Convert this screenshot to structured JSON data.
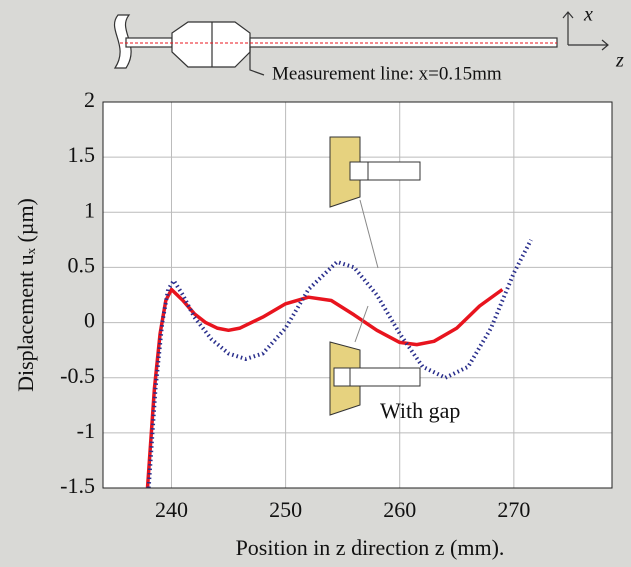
{
  "chart_data": {
    "type": "line",
    "annotation_top": "Measurement line: x=0.15mm",
    "annotation": "With gap",
    "xlabel": "Position in z direction  z (mm).",
    "ylabel": "Displacement uₓ (µm)",
    "axis_x_label": "x",
    "axis_z_label": "z",
    "xlim": [
      234,
      278.6
    ],
    "ylim": [
      -1.5,
      2
    ],
    "xticks": [
      240,
      250,
      260,
      270
    ],
    "yticks": [
      -1.5,
      -1,
      -0.5,
      0,
      0.5,
      1,
      1.5,
      2
    ],
    "grid": true,
    "series": [
      {
        "color": "#e8141e",
        "style": "solid",
        "x": [
          237.9,
          238.5,
          239,
          239.5,
          240,
          241,
          242,
          243,
          244,
          245,
          246,
          248,
          250,
          252,
          254,
          256,
          258,
          260,
          261.5,
          263,
          265,
          267,
          269
        ],
        "values": [
          -1.5,
          -0.6,
          -0.1,
          0.2,
          0.3,
          0.2,
          0.08,
          0,
          -0.05,
          -0.07,
          -0.05,
          0.05,
          0.17,
          0.23,
          0.2,
          0.07,
          -0.07,
          -0.18,
          -0.2,
          -0.17,
          -0.05,
          0.15,
          0.3
        ]
      },
      {
        "color": "#2a2f8c",
        "style": "dotted",
        "x": [
          238,
          238.6,
          239.2,
          239.7,
          240.2,
          241,
          242,
          243.5,
          245,
          246.5,
          248,
          250,
          252,
          254.5,
          256,
          258,
          260,
          262,
          264,
          266,
          268,
          270,
          271.5
        ],
        "values": [
          -1.5,
          -0.6,
          0,
          0.3,
          0.38,
          0.25,
          0.05,
          -0.15,
          -0.28,
          -0.33,
          -0.28,
          -0.05,
          0.3,
          0.55,
          0.5,
          0.25,
          -0.1,
          -0.4,
          -0.5,
          -0.4,
          -0.05,
          0.45,
          0.75
        ]
      }
    ]
  }
}
